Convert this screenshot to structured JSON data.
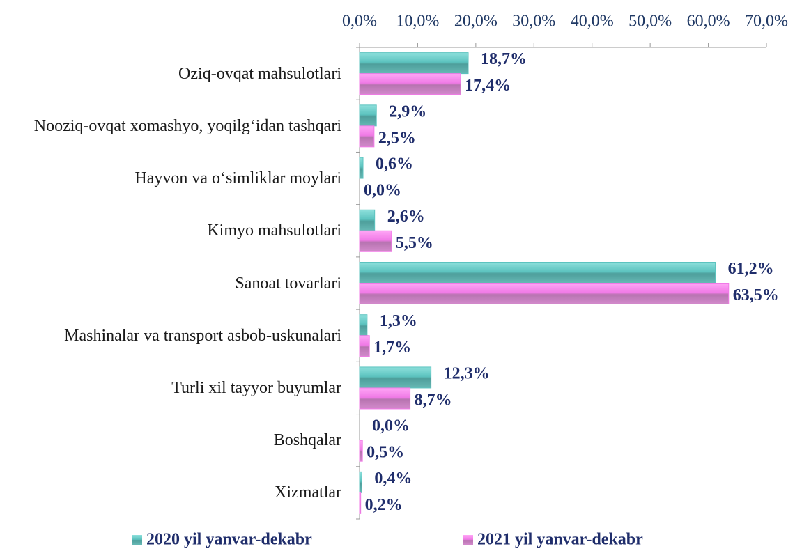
{
  "chart_data": {
    "type": "bar",
    "orientation": "horizontal",
    "categories": [
      "Oziq-ovqat mahsulotlari",
      "Nooziq-ovqat xomashyo, yoqilg‘idan tashqari",
      "Hayvon va o‘simliklar moylari",
      "Kimyo mahsulotlari",
      "Sanoat tovarlari",
      "Mashinalar va transport asbob-uskunalari",
      "Turli xil tayyor buyumlar",
      "Boshqalar",
      "Xizmatlar"
    ],
    "series": [
      {
        "name": "2020 yil yanvar-dekabr",
        "color": "#5cc3bf",
        "values": [
          18.7,
          2.9,
          0.6,
          2.6,
          61.2,
          1.3,
          12.3,
          0.0,
          0.4
        ],
        "value_labels": [
          "18,7%",
          "2,9%",
          "0,6%",
          "2,6%",
          "61,2%",
          "1,3%",
          "12,3%",
          "0,0%",
          "0,4%"
        ]
      },
      {
        "name": "2021 yil yanvar-dekabr",
        "color": "#f07ae6",
        "values": [
          17.4,
          2.5,
          0.0,
          5.5,
          63.5,
          1.7,
          8.7,
          0.5,
          0.2
        ],
        "value_labels": [
          "17,4%",
          "2,5%",
          "0,0%",
          "5,5%",
          "63,5%",
          "1,7%",
          "8,7%",
          "0,5%",
          "0,2%"
        ]
      }
    ],
    "xlim": [
      0,
      70
    ],
    "xticks": [
      {
        "value": 0,
        "label": "0,0%"
      },
      {
        "value": 10,
        "label": "10,0%"
      },
      {
        "value": 20,
        "label": "20,0%"
      },
      {
        "value": 30,
        "label": "30,0%"
      },
      {
        "value": 40,
        "label": "40,0%"
      },
      {
        "value": 50,
        "label": "50,0%"
      },
      {
        "value": 60,
        "label": "60,0%"
      },
      {
        "value": 70,
        "label": "70,0%"
      }
    ],
    "legend": "bottom"
  }
}
